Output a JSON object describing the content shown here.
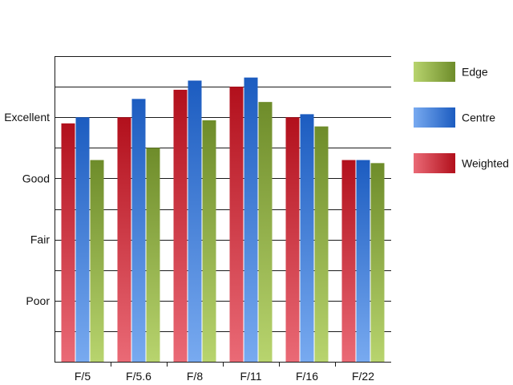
{
  "chart_data": {
    "type": "bar",
    "categories": [
      "F/5",
      "F/5.6",
      "F/8",
      "F/11",
      "F/16",
      "F/22"
    ],
    "series": [
      {
        "name": "Weighted",
        "values": [
          7.8,
          8.0,
          8.9,
          9.0,
          8.0,
          6.6
        ],
        "colors": {
          "light": "#ea6a76",
          "dark": "#b2101c"
        }
      },
      {
        "name": "Centre",
        "values": [
          8.0,
          8.6,
          9.2,
          9.3,
          8.1,
          6.6
        ],
        "colors": {
          "light": "#78aaf0",
          "dark": "#1c5cc0"
        }
      },
      {
        "name": "Edge",
        "values": [
          6.6,
          7.0,
          7.9,
          8.5,
          7.7,
          6.5
        ],
        "colors": {
          "light": "#b8d46e",
          "dark": "#6e8c2a"
        }
      }
    ],
    "ylim": [
      0,
      10
    ],
    "yticks": [
      {
        "value": 2,
        "label": "Poor"
      },
      {
        "value": 4,
        "label": "Fair"
      },
      {
        "value": 6,
        "label": "Good"
      },
      {
        "value": 8,
        "label": "Excellent"
      }
    ],
    "gridlines": [
      1,
      2,
      3,
      4,
      5,
      6,
      7,
      8,
      9,
      10
    ],
    "grid": true,
    "legend_position": "right",
    "legend_order": [
      "Edge",
      "Centre",
      "Weighted"
    ]
  }
}
